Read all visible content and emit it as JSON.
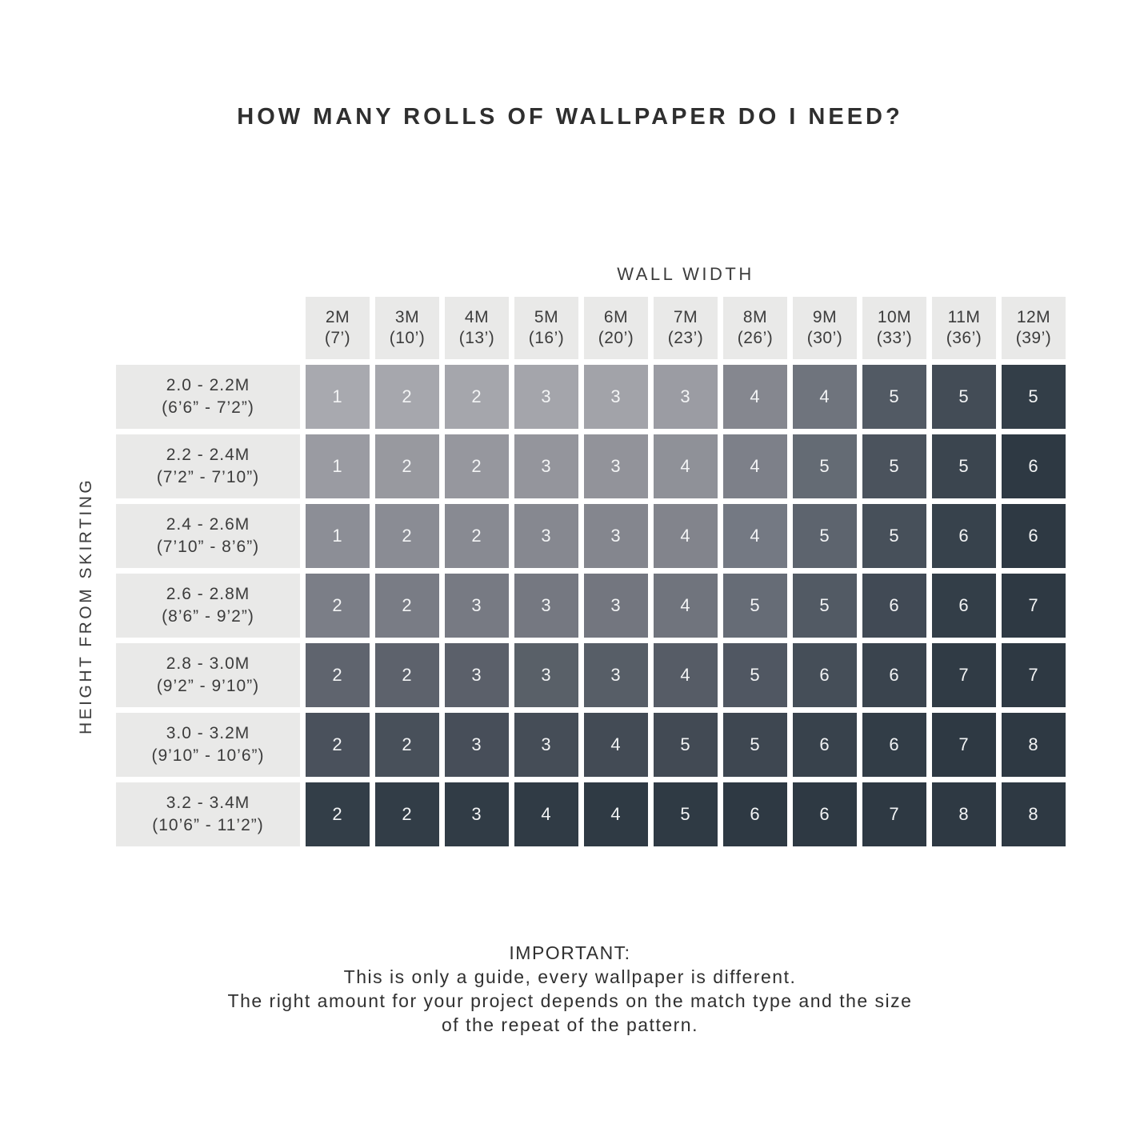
{
  "title": "HOW MANY ROLLS OF WALLPAPER DO I NEED?",
  "axes": {
    "column_label": "WALL WIDTH",
    "row_label": "HEIGHT FROM SKIRTING"
  },
  "columns": [
    {
      "metric": "2M",
      "imperial": "(7’)"
    },
    {
      "metric": "3M",
      "imperial": "(10’)"
    },
    {
      "metric": "4M",
      "imperial": "(13’)"
    },
    {
      "metric": "5M",
      "imperial": "(16’)"
    },
    {
      "metric": "6M",
      "imperial": "(20’)"
    },
    {
      "metric": "7M",
      "imperial": "(23’)"
    },
    {
      "metric": "8M",
      "imperial": "(26’)"
    },
    {
      "metric": "9M",
      "imperial": "(30’)"
    },
    {
      "metric": "10M",
      "imperial": "(33’)"
    },
    {
      "metric": "11M",
      "imperial": "(36’)"
    },
    {
      "metric": "12M",
      "imperial": "(39’)"
    }
  ],
  "rows": [
    {
      "metric": "2.0 - 2.2M",
      "imperial": "(6’6” - 7’2”)"
    },
    {
      "metric": "2.2 - 2.4M",
      "imperial": "(7’2” - 7’10”)"
    },
    {
      "metric": "2.4 - 2.6M",
      "imperial": "(7’10” - 8’6”)"
    },
    {
      "metric": "2.6 - 2.8M",
      "imperial": "(8’6” - 9’2”)"
    },
    {
      "metric": "2.8 - 3.0M",
      "imperial": "(9’2” - 9’10”)"
    },
    {
      "metric": "3.0 - 3.2M",
      "imperial": "(9’10” - 10’6”)"
    },
    {
      "metric": "3.2 - 3.4M",
      "imperial": "(10’6” - 11’2”)"
    }
  ],
  "cell_colors": [
    [
      "#A8A9AF",
      "#A6A7AD",
      "#A5A6AC",
      "#A4A5AB",
      "#A2A3A9",
      "#9B9CA3",
      "#85878F",
      "#6F747D",
      "#525A64",
      "#434C56",
      "#333E48"
    ],
    [
      "#9A9BA2",
      "#98999F",
      "#96979E",
      "#94959C",
      "#92939A",
      "#8F9198",
      "#7D8089",
      "#646B74",
      "#4B535D",
      "#3B454F",
      "#2E3943"
    ],
    [
      "#8C8E96",
      "#8A8C94",
      "#888A92",
      "#868890",
      "#84868E",
      "#82848C",
      "#747983",
      "#5D646E",
      "#47505A",
      "#37424C",
      "#2E3943"
    ],
    [
      "#7B7E87",
      "#797C85",
      "#777A83",
      "#757881",
      "#73767F",
      "#70747D",
      "#666C76",
      "#525A64",
      "#414A55",
      "#333E48",
      "#2E3943"
    ],
    [
      "#5F646E",
      "#5D626C",
      "#5B606A",
      "#596068",
      "#575E67",
      "#565C66",
      "#505762",
      "#454E58",
      "#3A444E",
      "#303B45",
      "#2E3943"
    ],
    [
      "#4A515C",
      "#48505A",
      "#474E59",
      "#454D57",
      "#434B55",
      "#424A54",
      "#3E4751",
      "#38424C",
      "#323D47",
      "#2E3943",
      "#2E3943"
    ],
    [
      "#333E48",
      "#323D47",
      "#313C46",
      "#303B45",
      "#2F3A44",
      "#2F3A44",
      "#2E3943",
      "#2E3943",
      "#2E3943",
      "#2E3943",
      "#2E3943"
    ]
  ],
  "footer": {
    "heading": "IMPORTANT:",
    "line1": "This is only a guide, every wallpaper is different.",
    "line2": "The right amount for your project depends on the match type and the size",
    "line3": "of the repeat of the pattern."
  },
  "theme": {
    "page_bg": "#FFFFFF",
    "header_bg": "#E9E9E8",
    "header_text": "#3C3C3C",
    "title_text": "#2F2F2F",
    "cell_text": "#F3F4F5",
    "gradient_light": "#A8A9AF",
    "gradient_dark": "#2E3943"
  },
  "chart_data": {
    "type": "heatmap",
    "title": "HOW MANY ROLLS OF WALLPAPER DO I NEED?",
    "xlabel": "WALL WIDTH",
    "ylabel": "HEIGHT FROM SKIRTING",
    "x_categories": [
      "2M (7’)",
      "3M (10’)",
      "4M (13’)",
      "5M (16’)",
      "6M (20’)",
      "7M (23’)",
      "8M (26’)",
      "9M (30’)",
      "10M (33’)",
      "11M (36’)",
      "12M (39’)"
    ],
    "y_categories": [
      "2.0 - 2.2M (6’6” - 7’2”)",
      "2.2 - 2.4M (7’2” - 7’10”)",
      "2.4 - 2.6M (7’10” - 8’6”)",
      "2.6 - 2.8M (8’6” - 9’2”)",
      "2.8 - 3.0M (9’2” - 9’10”)",
      "3.0 - 3.2M (9’10” - 10’6”)",
      "3.2 - 3.4M (10’6” - 11’2”)"
    ],
    "values": [
      [
        1,
        2,
        2,
        3,
        3,
        3,
        4,
        4,
        5,
        5,
        5
      ],
      [
        1,
        2,
        2,
        3,
        3,
        4,
        4,
        5,
        5,
        5,
        6
      ],
      [
        1,
        2,
        2,
        3,
        3,
        4,
        4,
        5,
        5,
        6,
        6
      ],
      [
        2,
        2,
        3,
        3,
        3,
        4,
        5,
        5,
        6,
        6,
        7
      ],
      [
        2,
        2,
        3,
        3,
        3,
        4,
        5,
        6,
        6,
        7,
        7
      ],
      [
        2,
        2,
        3,
        3,
        4,
        5,
        5,
        6,
        6,
        7,
        8
      ],
      [
        2,
        2,
        3,
        4,
        4,
        5,
        6,
        6,
        7,
        8,
        8
      ]
    ],
    "value_meaning": "number of wallpaper rolls needed",
    "color_scale": "light gray (top-left, fewer rolls) to dark slate (bottom-right, more rolls)",
    "legend": "none",
    "grid": "white gaps between cells"
  }
}
